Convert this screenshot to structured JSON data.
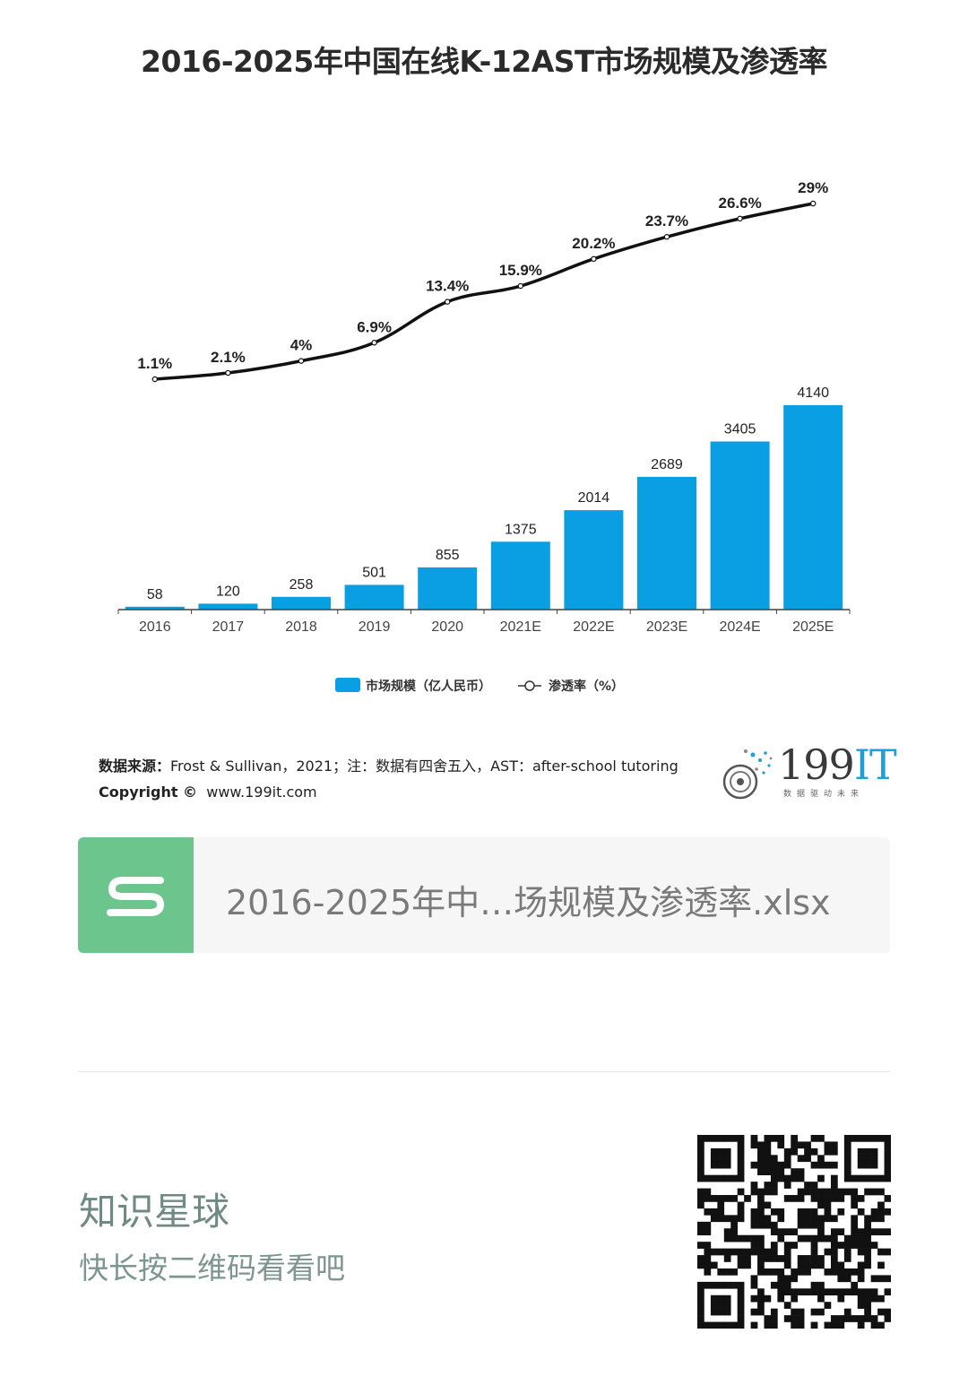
{
  "chart_data": {
    "type": "bar+line",
    "title": "2016-2025年中国在线K-12AST市场规模及渗透率",
    "categories": [
      "2016",
      "2017",
      "2018",
      "2019",
      "2020",
      "2021E",
      "2022E",
      "2023E",
      "2024E",
      "2025E"
    ],
    "series": [
      {
        "name": "市场规模（亿人民币）",
        "type": "bar",
        "values": [
          58,
          120,
          258,
          501,
          855,
          1375,
          2014,
          2689,
          3405,
          4140
        ],
        "color": "#0a9fe3"
      },
      {
        "name": "渗透率（%）",
        "type": "line",
        "values": [
          1.1,
          2.1,
          4,
          6.9,
          13.4,
          15.9,
          20.2,
          23.7,
          26.6,
          29
        ],
        "labels": [
          "1.1%",
          "2.1%",
          "4%",
          "6.9%",
          "13.4%",
          "15.9%",
          "20.2%",
          "23.7%",
          "26.6%",
          "29%"
        ],
        "color": "#111111"
      }
    ],
    "bar_ylim": [
      0,
      4140
    ],
    "line_ylim": [
      1.1,
      29
    ],
    "legend_position": "bottom-center",
    "grid": false
  },
  "source": {
    "label": "数据来源：",
    "text": "Frost & Sullivan，2021；注：数据有四舍五入，AST：after-school tutoring",
    "copyright": "Copyright ©",
    "site": "www.199it.com"
  },
  "logo": {
    "text": "199",
    "text_accent": "IT",
    "sub": "数据驱动未来"
  },
  "file_card": {
    "name": "2016-2025年中…场规模及渗透率.xlsx",
    "icon": "spreadsheet-s-icon"
  },
  "promo": {
    "title": "知识星球",
    "subtitle": "快长按二维码看看吧"
  }
}
